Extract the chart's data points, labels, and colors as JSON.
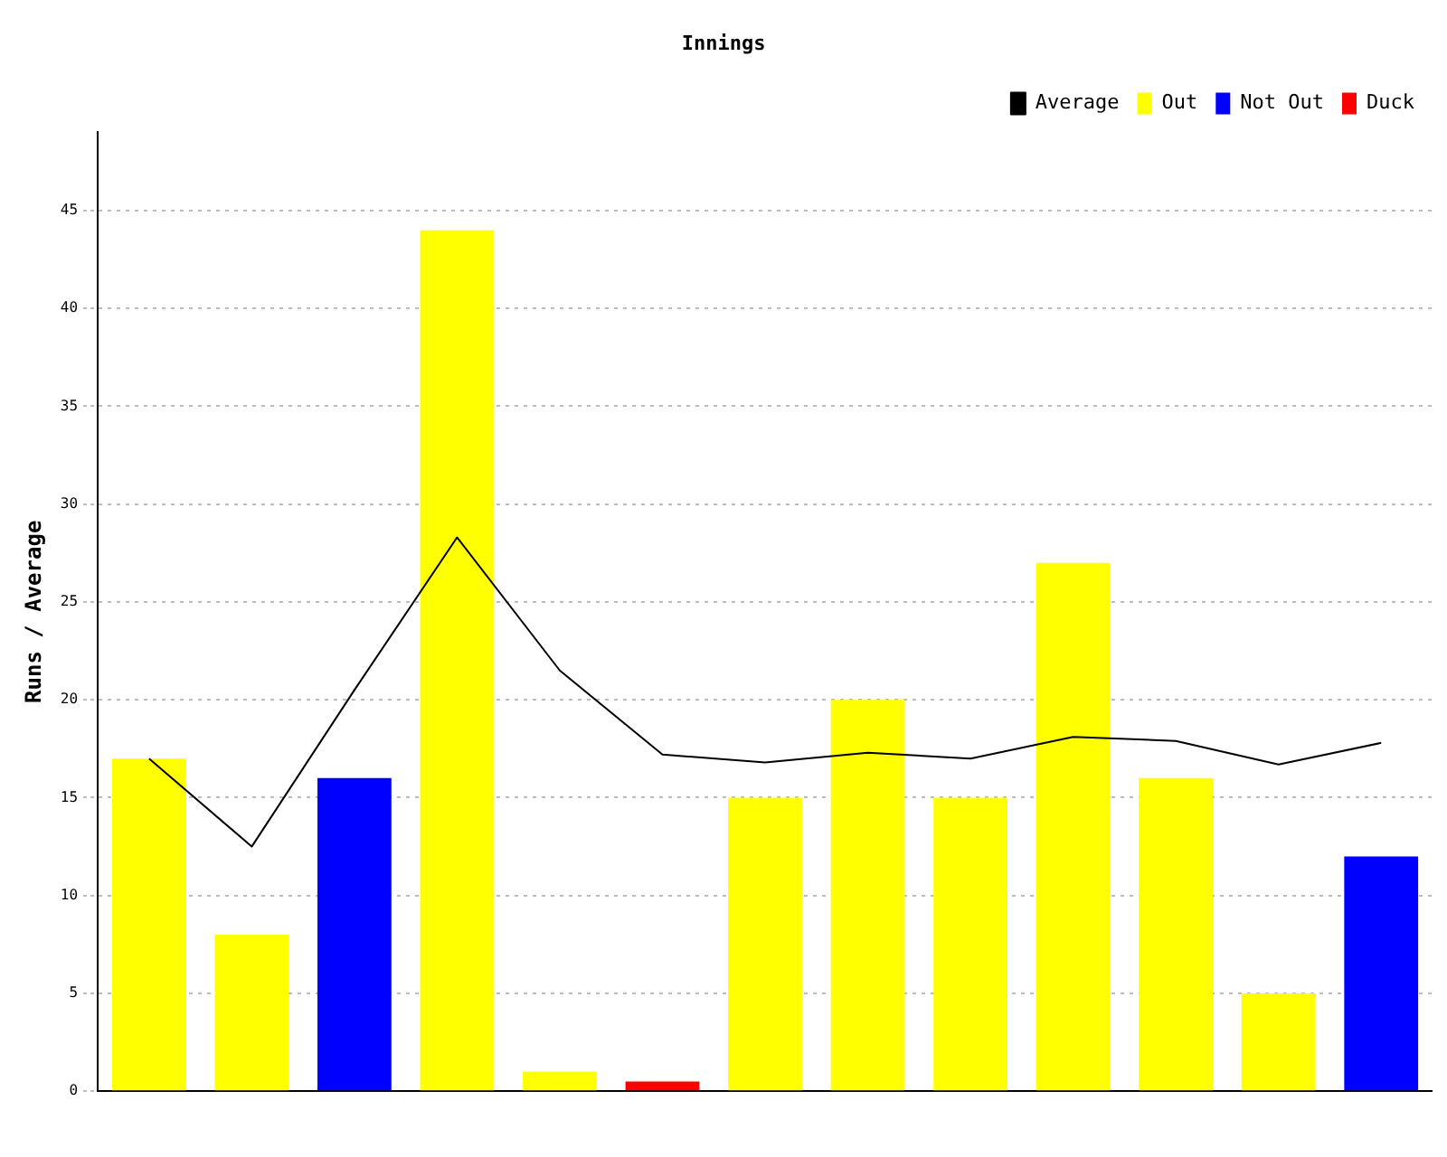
{
  "chart_data": {
    "type": "bar",
    "title": "Innings",
    "ylabel": "Runs / Average",
    "categories": [
      null,
      null,
      null,
      null,
      null,
      null,
      null,
      null,
      null,
      null,
      null,
      null,
      null
    ],
    "stacked": true,
    "series": [
      {
        "name": "Average",
        "type": "line",
        "color": "#000000",
        "marker": "none",
        "values": [
          17,
          12.5,
          20.5,
          28.3,
          21.5,
          17.2,
          16.8,
          17.3,
          17,
          18.1,
          17.9,
          16.7,
          17.8
        ]
      },
      {
        "name": "Out",
        "color": "#ffff00",
        "values": [
          17,
          8,
          null,
          44,
          1,
          null,
          15,
          20,
          15,
          27,
          16,
          5,
          null
        ]
      },
      {
        "name": "Not Out",
        "color": "#0000ff",
        "values": [
          null,
          null,
          16,
          null,
          null,
          null,
          null,
          null,
          null,
          null,
          null,
          null,
          12
        ]
      },
      {
        "name": "Duck",
        "color": "#ff0000",
        "values": [
          null,
          null,
          null,
          null,
          null,
          0.5,
          null,
          null,
          null,
          null,
          null,
          null,
          null
        ]
      }
    ],
    "ylim": [
      0,
      49
    ],
    "yticks": [
      0,
      5,
      10,
      15,
      20,
      25,
      30,
      35,
      40,
      45
    ],
    "grid": "y",
    "legend": "top right"
  }
}
